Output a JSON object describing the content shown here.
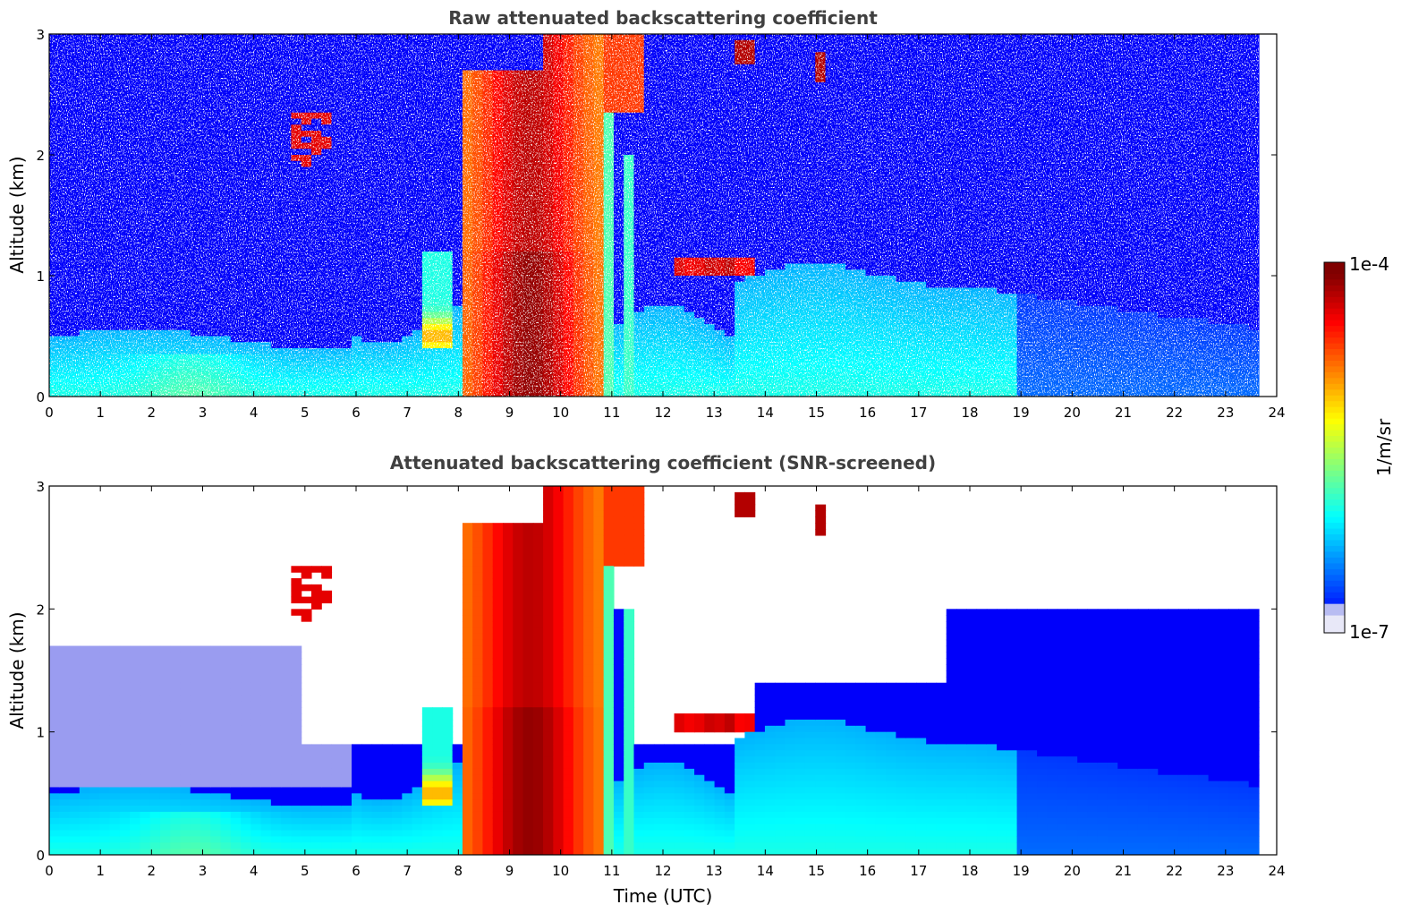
{
  "chart_data": [
    {
      "type": "heatmap",
      "title": "Raw attenuated backscattering coefficient",
      "xlabel": "",
      "ylabel": "Altitude (km)",
      "xlim": [
        0,
        24
      ],
      "ylim": [
        0,
        3
      ],
      "xticks": [
        0,
        1,
        2,
        3,
        4,
        5,
        6,
        7,
        8,
        9,
        10,
        11,
        12,
        13,
        14,
        15,
        16,
        17,
        18,
        19,
        20,
        21,
        22,
        23,
        24
      ],
      "yticks": [
        0,
        1,
        2,
        3
      ],
      "data_end_time": 23.65,
      "features": [
        {
          "name": "boundary-layer",
          "time_range": [
            0,
            23.65
          ],
          "altitude_top": 0.5,
          "level": "low-mid"
        },
        {
          "name": "thick-cloud",
          "time_range": [
            8.1,
            10.8
          ],
          "altitude_range": [
            0,
            3
          ],
          "level": "high"
        },
        {
          "name": "upper-cloud",
          "time_range": [
            10.9,
            11.5
          ],
          "altitude_range": [
            2.4,
            3.0
          ],
          "level": "high"
        },
        {
          "name": "elevated-cloud-patches",
          "time_range": [
            12.3,
            13.7
          ],
          "altitude_range": [
            1.0,
            1.2
          ],
          "level": "high"
        },
        {
          "name": "cirrus-patch",
          "time_range": [
            4.8,
            5.6
          ],
          "altitude_range": [
            1.9,
            2.3
          ],
          "level": "high"
        },
        {
          "name": "cirrus-patch",
          "time_range": [
            14.9,
            15.2
          ],
          "altitude_range": [
            2.6,
            2.8
          ],
          "level": "high"
        }
      ]
    },
    {
      "type": "heatmap",
      "title": "Attenuated backscattering coefficient (SNR-screened)",
      "xlabel": "Time (UTC)",
      "ylabel": "Altitude (km)",
      "xlim": [
        0,
        24
      ],
      "ylim": [
        0,
        3
      ],
      "xticks": [
        0,
        1,
        2,
        3,
        4,
        5,
        6,
        7,
        8,
        9,
        10,
        11,
        12,
        13,
        14,
        15,
        16,
        17,
        18,
        19,
        20,
        21,
        22,
        23,
        24
      ],
      "yticks": [
        0,
        1,
        2,
        3
      ],
      "data_end_time": 23.65,
      "screened": true
    }
  ],
  "colorbar": {
    "min_label": "1e-7",
    "max_label": "1e-4",
    "label": "1/m/sr",
    "colormap": "jet"
  }
}
